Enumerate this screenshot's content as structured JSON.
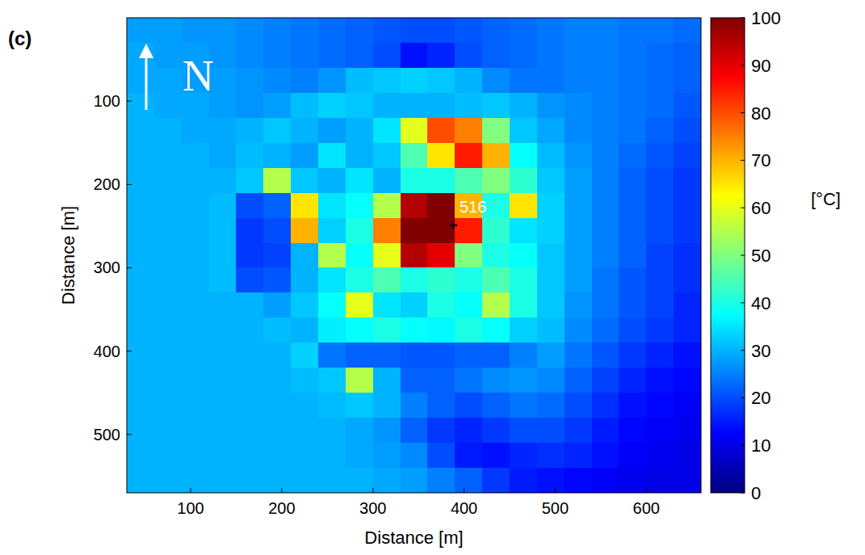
{
  "chart_data": {
    "type": "heatmap",
    "panel": "(c)",
    "north_label": "N",
    "xlabel": "Distance [m]",
    "ylabel": "Distance [m]",
    "xlim": [
      30,
      660
    ],
    "ylim": [
      0,
      570
    ],
    "xticks": [
      100,
      200,
      300,
      400,
      500,
      600
    ],
    "yticks": [
      100,
      200,
      300,
      400,
      500
    ],
    "x": [
      45,
      75,
      105,
      135,
      165,
      195,
      225,
      255,
      285,
      315,
      345,
      375,
      405,
      435,
      465,
      495,
      525,
      555,
      585,
      615,
      645
    ],
    "y": [
      15,
      45,
      75,
      105,
      135,
      165,
      195,
      225,
      255,
      285,
      315,
      345,
      375,
      405,
      435,
      465,
      495,
      525,
      555
    ],
    "values": [
      [
        28,
        28,
        27,
        27,
        26,
        25,
        24,
        23,
        22,
        21,
        20,
        20,
        21,
        22,
        23,
        24,
        25,
        25,
        24,
        24,
        23
      ],
      [
        29,
        28,
        28,
        27,
        26,
        25,
        24,
        23,
        22,
        20,
        14,
        16,
        20,
        22,
        23,
        24,
        25,
        25,
        24,
        23,
        22
      ],
      [
        29,
        29,
        28,
        28,
        27,
        26,
        25,
        27,
        31,
        32,
        33,
        32,
        30,
        26,
        24,
        24,
        25,
        25,
        24,
        23,
        22
      ],
      [
        30,
        29,
        29,
        28,
        27,
        28,
        31,
        33,
        32,
        30,
        30,
        30,
        31,
        32,
        30,
        27,
        26,
        25,
        24,
        23,
        21
      ],
      [
        30,
        30,
        29,
        29,
        30,
        32,
        30,
        28,
        30,
        35,
        60,
        80,
        75,
        50,
        32,
        29,
        26,
        25,
        24,
        22,
        20
      ],
      [
        30,
        30,
        30,
        29,
        31,
        30,
        28,
        35,
        30,
        32,
        45,
        65,
        85,
        70,
        38,
        31,
        27,
        25,
        23,
        21,
        19
      ],
      [
        30,
        30,
        30,
        30,
        32,
        55,
        32,
        30,
        35,
        30,
        40,
        40,
        45,
        50,
        42,
        32,
        28,
        25,
        22,
        20,
        18
      ],
      [
        30,
        30,
        30,
        31,
        20,
        22,
        65,
        35,
        38,
        55,
        95,
        100,
        70,
        40,
        65,
        33,
        28,
        25,
        22,
        20,
        18
      ],
      [
        30,
        30,
        30,
        31,
        18,
        20,
        70,
        33,
        40,
        75,
        100,
        100,
        85,
        42,
        35,
        33,
        28,
        25,
        22,
        20,
        18
      ],
      [
        30,
        30,
        30,
        31,
        18,
        19,
        30,
        55,
        38,
        60,
        95,
        90,
        50,
        40,
        38,
        32,
        28,
        25,
        22,
        19,
        17
      ],
      [
        30,
        30,
        30,
        31,
        20,
        21,
        30,
        35,
        40,
        45,
        40,
        42,
        40,
        45,
        40,
        32,
        28,
        24,
        21,
        19,
        17
      ],
      [
        30,
        30,
        30,
        30,
        30,
        28,
        32,
        38,
        60,
        35,
        33,
        40,
        38,
        55,
        40,
        32,
        27,
        24,
        21,
        19,
        16
      ],
      [
        30,
        30,
        30,
        30,
        30,
        31,
        30,
        36,
        38,
        40,
        38,
        37,
        40,
        38,
        33,
        31,
        26,
        23,
        20,
        18,
        16
      ],
      [
        30,
        30,
        30,
        30,
        30,
        30,
        33,
        24,
        22,
        22,
        21,
        21,
        22,
        22,
        25,
        28,
        24,
        21,
        18,
        16,
        14
      ],
      [
        30,
        30,
        30,
        30,
        30,
        30,
        31,
        32,
        55,
        30,
        22,
        22,
        24,
        26,
        27,
        26,
        22,
        19,
        16,
        14,
        13
      ],
      [
        30,
        30,
        30,
        30,
        30,
        30,
        30,
        31,
        32,
        30,
        25,
        22,
        20,
        22,
        24,
        23,
        20,
        17,
        14,
        13,
        12
      ],
      [
        30,
        30,
        30,
        30,
        30,
        30,
        30,
        30,
        29,
        27,
        22,
        18,
        16,
        18,
        20,
        20,
        18,
        15,
        13,
        12,
        11
      ],
      [
        30,
        30,
        30,
        30,
        30,
        30,
        30,
        30,
        29,
        28,
        26,
        20,
        15,
        14,
        16,
        17,
        16,
        14,
        12,
        11,
        10
      ],
      [
        30,
        30,
        30,
        30,
        30,
        30,
        30,
        30,
        30,
        29,
        28,
        25,
        22,
        18,
        15,
        14,
        13,
        12,
        11,
        10,
        10
      ]
    ],
    "colorbar": {
      "range": [
        0,
        100
      ],
      "ticks": [
        0,
        10,
        20,
        30,
        40,
        50,
        60,
        70,
        80,
        90,
        100
      ],
      "label": "[°C]"
    },
    "annotations": [
      {
        "text": "516",
        "x": 388,
        "y": 249
      }
    ]
  }
}
